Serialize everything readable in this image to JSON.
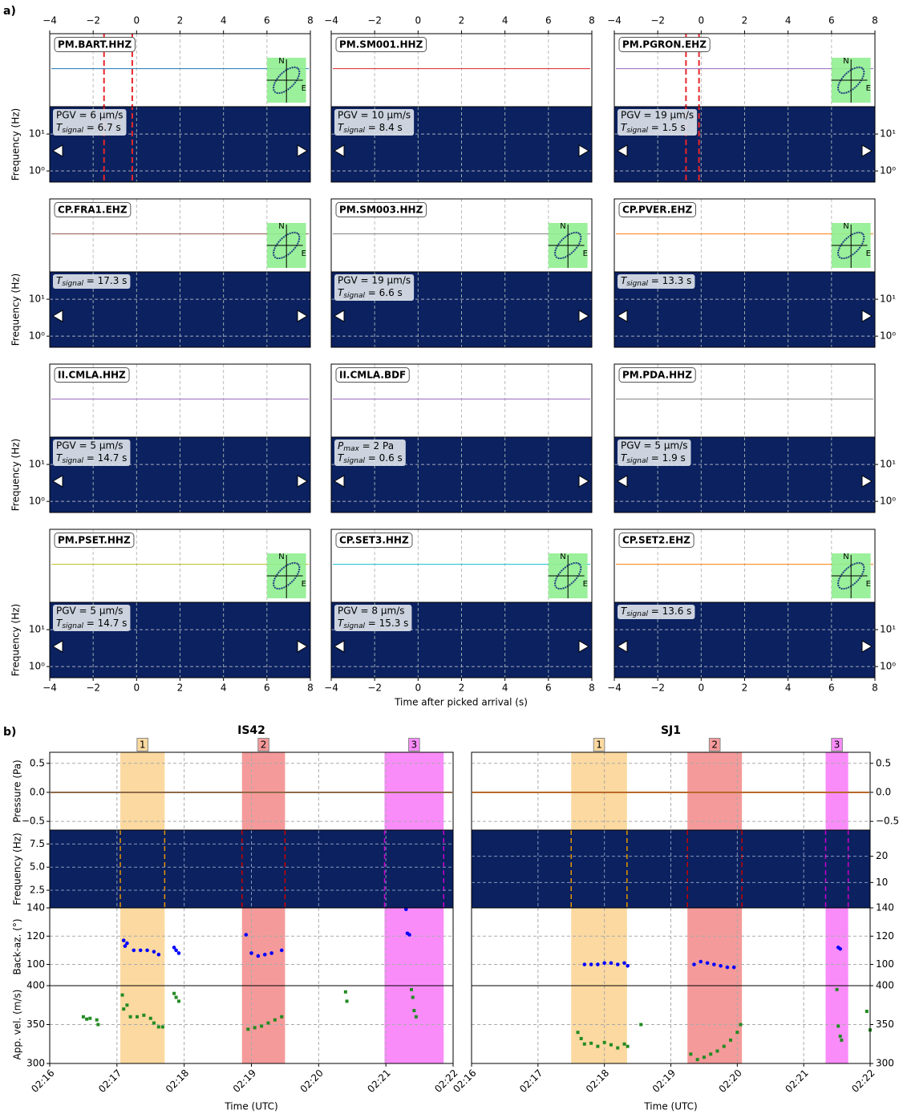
{
  "figure_labels": {
    "a": "a)",
    "b": "b)"
  },
  "chart_data": [
    {
      "type": "station-grid",
      "xlabel": "Time after picked arrival (s)",
      "ylabel": "Frequency (Hz)",
      "xlim": [
        -4,
        8
      ],
      "xticks": [
        {
          "value": -4,
          "label": "−4"
        },
        {
          "value": -2,
          "label": "−2"
        },
        0,
        2,
        4,
        6,
        8
      ],
      "yscale": "log",
      "ylim": [
        0.5,
        55
      ],
      "yticks": [
        {
          "value": 1,
          "label": "10⁰"
        },
        {
          "value": 10,
          "label": "10¹"
        }
      ],
      "grid": true,
      "compass": [
        "N",
        "E"
      ],
      "tsignal_symbol": "T",
      "tsignal_subscript": "signal",
      "pmax_symbol": "P",
      "pmax_subscript": "max",
      "stations": [
        {
          "name": "PM.BART.HHZ",
          "color": "#1f77b4",
          "pgv": "PGV =  6 μm/s",
          "tsignal": " = 6.7 s",
          "picks": [
            -1.5,
            -0.2
          ],
          "polarization": true
        },
        {
          "name": "PM.SM001.HHZ",
          "color": "#d62728",
          "pgv": "PGV = 10 μm/s",
          "tsignal": " = 8.4 s",
          "polarization": false
        },
        {
          "name": "PM.PGRON.EHZ",
          "color": "#9467bd",
          "pgv": "PGV = 19 μm/s",
          "tsignal": " = 1.5 s",
          "picks": [
            -0.7,
            -0.1
          ],
          "polarization": true
        },
        {
          "name": "CP.FRA1.EHZ",
          "color": "#8c564b",
          "tsignal": " = 17.3 s",
          "polarization": true
        },
        {
          "name": "PM.SM003.HHZ",
          "color": "#7f7f7f",
          "pgv": "PGV = 19 μm/s",
          "tsignal": " = 6.6 s",
          "polarization": true
        },
        {
          "name": "CP.PVER.EHZ",
          "color": "#ff7f0e",
          "tsignal": " = 13.3 s",
          "polarization": true
        },
        {
          "name": "II.CMLA.HHZ",
          "color": "#9467bd",
          "pgv": "PGV =  5 μm/s",
          "tsignal": " = 14.7 s",
          "polarization": false
        },
        {
          "name": "II.CMLA.BDF",
          "color": "#9467bd",
          "pmax": " =  2 Pa",
          "tsignal": " = 0.6 s",
          "polarization": false
        },
        {
          "name": "PM.PDA.HHZ",
          "color": "#7f7f7f",
          "pgv": "PGV =  5 μm/s",
          "tsignal": " = 1.9 s",
          "polarization": false
        },
        {
          "name": "PM.PSET.HHZ",
          "color": "#bcbd22",
          "pgv": "PGV =  5 μm/s",
          "tsignal": " = 14.7 s",
          "polarization": true
        },
        {
          "name": "CP.SET3.HHZ",
          "color": "#17becf",
          "pgv": "PGV =  8 μm/s",
          "tsignal": " = 15.3 s",
          "polarization": true
        },
        {
          "name": "CP.SET2.EHZ",
          "color": "#ff7f0e",
          "tsignal": " = 13.6 s",
          "polarization": true
        }
      ]
    },
    {
      "type": "array-panels",
      "title": "IS42",
      "xlabel": "Time (UTC)",
      "yaxis_side": "left",
      "trace_color": "#8f6a4a",
      "xlim": [
        16,
        22
      ],
      "xticks": [
        {
          "value": 16,
          "label": "02:16"
        },
        {
          "value": 17,
          "label": "02:17"
        },
        {
          "value": 18,
          "label": "02:18"
        },
        {
          "value": 19,
          "label": "02:19"
        },
        {
          "value": 20,
          "label": "02:20"
        },
        {
          "value": 21,
          "label": "02:21"
        },
        {
          "value": 22,
          "label": "02:22"
        }
      ],
      "windows": [
        {
          "label": "1",
          "start": 17.05,
          "end": 17.71,
          "color": "#fbd9a0",
          "edge_color": "#e69500"
        },
        {
          "label": "2",
          "start": 18.86,
          "end": 19.5,
          "color": "#f59a9a",
          "edge_color": "#cc0000"
        },
        {
          "label": "3",
          "start": 20.98,
          "end": 21.86,
          "color": "#fa8cfa",
          "edge_color": "#cc00cc"
        }
      ],
      "pressure": {
        "ylabel": "Pressure (Pa)",
        "ylim": [
          -0.65,
          0.69
        ],
        "yticks": [
          {
            "value": -0.5,
            "label": "−0.5"
          },
          {
            "value": 0,
            "label": "0.0"
          },
          {
            "value": 0.5,
            "label": "0.5"
          }
        ]
      },
      "spectrogram": {
        "ylabel": "Frequency (Hz)",
        "ylim": [
          0.6,
          9
        ],
        "yticks": [
          2.5,
          {
            "value": 5,
            "label": "5.0"
          },
          7.5
        ]
      },
      "backazimuth": {
        "ylabel": "Back-az. (°)",
        "ylim": [
          85,
          140
        ],
        "yticks": [
          100,
          120,
          140
        ],
        "color": "#0000ff",
        "x": [
          17.1,
          17.12,
          17.15,
          17.25,
          17.35,
          17.45,
          17.55,
          17.62,
          17.85,
          17.88,
          17.92,
          18.92,
          19.0,
          19.1,
          19.2,
          19.3,
          19.45,
          21.3,
          21.32,
          21.35
        ],
        "values": [
          117,
          113,
          115,
          110,
          110,
          110,
          109,
          107,
          112,
          110,
          108,
          121,
          108,
          106,
          107,
          108,
          110,
          139,
          122,
          121
        ]
      },
      "velocity": {
        "ylabel": "App. vel. (m/s)",
        "ylim": [
          300,
          400
        ],
        "yticks": [
          300,
          350,
          400
        ],
        "color": "#228b22",
        "x": [
          16.5,
          16.55,
          16.6,
          16.7,
          16.72,
          17.08,
          17.1,
          17.15,
          17.2,
          17.3,
          17.4,
          17.5,
          17.55,
          17.62,
          17.68,
          17.85,
          17.88,
          17.92,
          18.95,
          19.05,
          19.15,
          19.25,
          19.35,
          19.45,
          20.4,
          20.42,
          21.38,
          21.4,
          21.42,
          21.45
        ],
        "values": [
          360,
          357,
          358,
          356,
          350,
          388,
          370,
          375,
          360,
          360,
          362,
          358,
          352,
          347,
          347,
          390,
          385,
          380,
          344,
          346,
          348,
          352,
          356,
          360,
          392,
          380,
          395,
          385,
          368,
          360
        ]
      }
    },
    {
      "type": "array-panels",
      "title": "SJ1",
      "yaxis_side": "right",
      "trace_color": "#b8692a",
      "xlim": [
        16,
        22
      ],
      "xticks": [
        {
          "value": 16,
          "label": "02:16"
        },
        {
          "value": 17,
          "label": "02:17"
        },
        {
          "value": 18,
          "label": "02:18"
        },
        {
          "value": 19,
          "label": "02:19"
        },
        {
          "value": 20,
          "label": "02:20"
        },
        {
          "value": 21,
          "label": "02:21"
        },
        {
          "value": 22,
          "label": "02:22"
        }
      ],
      "windows": [
        {
          "label": "1",
          "start": 17.5,
          "end": 18.34,
          "color": "#fbd9a0",
          "edge_color": "#e69500"
        },
        {
          "label": "2",
          "start": 19.25,
          "end": 20.07,
          "color": "#f59a9a",
          "edge_color": "#cc0000"
        },
        {
          "label": "3",
          "start": 21.33,
          "end": 21.67,
          "color": "#fa8cfa",
          "edge_color": "#cc00cc"
        }
      ],
      "pressure": {
        "ylim": [
          -0.65,
          0.69
        ],
        "yticks": [
          {
            "value": -0.5,
            "label": "−0.5"
          },
          {
            "value": 0,
            "label": "0.0"
          },
          {
            "value": 0.5,
            "label": "0.5"
          }
        ]
      },
      "spectrogram": {
        "ylim": [
          0.3,
          30
        ],
        "yticks": [
          10,
          20
        ]
      },
      "backazimuth": {
        "ylim": [
          85,
          140
        ],
        "yticks": [
          100,
          120,
          140
        ],
        "color": "#0000ff",
        "x": [
          17.7,
          17.8,
          17.9,
          18.0,
          18.1,
          18.2,
          18.3,
          18.35,
          19.35,
          19.45,
          19.55,
          19.65,
          19.75,
          19.85,
          19.95,
          21.52,
          21.55
        ],
        "values": [
          100,
          100,
          100,
          101,
          101,
          100,
          101,
          99,
          100,
          102,
          101,
          100,
          99,
          98,
          98,
          112,
          111
        ]
      },
      "velocity": {
        "ylim": [
          300,
          400
        ],
        "yticks": [
          300,
          350,
          400
        ],
        "color": "#228b22",
        "x": [
          17.6,
          17.65,
          17.7,
          17.8,
          17.9,
          18.0,
          18.1,
          18.2,
          18.3,
          18.35,
          18.55,
          19.3,
          19.4,
          19.5,
          19.6,
          19.7,
          19.8,
          19.9,
          20.0,
          20.05,
          21.5,
          21.52,
          21.55,
          21.57,
          21.95,
          22.0
        ],
        "values": [
          340,
          332,
          325,
          326,
          322,
          327,
          324,
          320,
          325,
          322,
          350,
          312,
          305,
          308,
          312,
          316,
          322,
          330,
          340,
          350,
          395,
          348,
          335,
          330,
          367,
          343
        ]
      }
    }
  ]
}
